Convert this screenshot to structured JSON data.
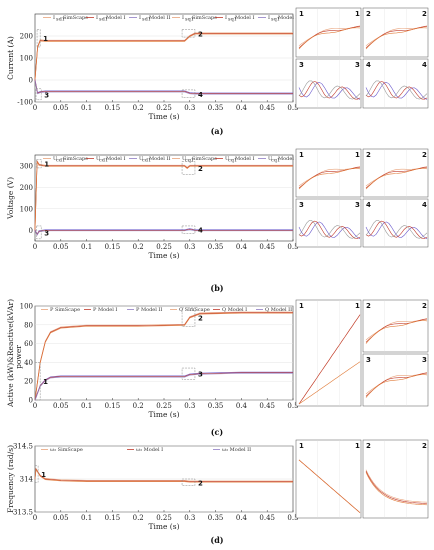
{
  "colors": {
    "simscape": "#e8a27a",
    "model1": "#c0392b",
    "model2": "#8e7cc3",
    "d_series": "#e07b39",
    "q_series": "#6a5acd",
    "grid": "#dddddd",
    "box": "#888888"
  },
  "chart_data": [
    {
      "id": "a",
      "type": "line",
      "panel_label": "(a)",
      "xlabel": "Time (s)",
      "ylabel": "Current (A)",
      "xlim": [
        0,
        0.5
      ],
      "ylim": [
        -100,
        300
      ],
      "xticks": [
        "0",
        "0.05",
        "0.1",
        "0.15",
        "0.2",
        "0.25",
        "0.3",
        "0.35",
        "0.4",
        "0.45",
        "0.5"
      ],
      "yticks": [
        "-100",
        "0",
        "100",
        "200"
      ],
      "legend": [
        "I",
        "SimScape",
        "I",
        "Model I",
        "I",
        "Model II",
        "I",
        "SimScape",
        "I",
        "Model I",
        "I",
        "Model II"
      ],
      "legend_subs": [
        "sd1",
        "",
        "sd1",
        "",
        "sd1",
        "",
        "sq1",
        "",
        "sq1",
        "",
        "sq1",
        ""
      ],
      "series": [
        {
          "group": "d",
          "x": [
            0,
            0.005,
            0.01,
            0.02,
            0.1,
            0.2,
            0.29,
            0.3,
            0.31,
            0.4,
            0.5
          ],
          "y": [
            0,
            150,
            180,
            178,
            178,
            178,
            178,
            200,
            212,
            212,
            212
          ]
        },
        {
          "group": "q",
          "x": [
            0,
            0.005,
            0.01,
            0.02,
            0.1,
            0.2,
            0.29,
            0.3,
            0.31,
            0.4,
            0.5
          ],
          "y": [
            0,
            -60,
            -55,
            -52,
            -52,
            -52,
            -52,
            -60,
            -62,
            -62,
            -62
          ]
        }
      ],
      "zooms": [
        "1",
        "2",
        "3",
        "4"
      ]
    },
    {
      "id": "b",
      "type": "line",
      "panel_label": "(b)",
      "xlabel": "Time (s)",
      "ylabel": "Voltage (V)",
      "xlim": [
        0,
        0.5
      ],
      "ylim": [
        -50,
        350
      ],
      "xticks": [
        "0",
        "0.05",
        "0.1",
        "0.15",
        "0.2",
        "0.25",
        "0.3",
        "0.35",
        "0.4",
        "0.45",
        "0.5"
      ],
      "yticks": [
        "0",
        "100",
        "200",
        "300"
      ],
      "legend": [
        "U",
        "SimScape",
        "U",
        "Model I",
        "U",
        "Model II",
        "U",
        "SimScape",
        "U",
        "Model I",
        "U",
        "Model II"
      ],
      "legend_subs": [
        "cd1",
        "",
        "cd1",
        "",
        "cd1",
        "",
        "cq1",
        "",
        "cq1",
        "",
        "cq1",
        ""
      ],
      "series": [
        {
          "group": "d",
          "x": [
            0,
            0.004,
            0.008,
            0.02,
            0.1,
            0.2,
            0.29,
            0.295,
            0.3,
            0.31,
            0.4,
            0.5
          ],
          "y": [
            0,
            320,
            305,
            300,
            300,
            300,
            300,
            290,
            300,
            300,
            300,
            300
          ]
        },
        {
          "group": "q",
          "x": [
            0,
            0.004,
            0.008,
            0.02,
            0.1,
            0.2,
            0.29,
            0.3,
            0.31,
            0.4,
            0.5
          ],
          "y": [
            0,
            -20,
            -5,
            0,
            0,
            0,
            0,
            5,
            0,
            0,
            0
          ]
        }
      ],
      "zooms": [
        "1",
        "2",
        "3",
        "4"
      ]
    },
    {
      "id": "c",
      "type": "line",
      "panel_label": "(c)",
      "xlabel": "Time (s)",
      "ylabel": "Active (kW)&Reactive(kVAr)",
      "ylabel2": "power",
      "xlim": [
        0,
        0.5
      ],
      "ylim": [
        0,
        100
      ],
      "xticks": [
        "0",
        "0.05",
        "0.1",
        "0.15",
        "0.2",
        "0.25",
        "0.3",
        "0.35",
        "0.4",
        "0.45",
        "0.5"
      ],
      "yticks": [
        "0",
        "20",
        "40",
        "60",
        "80",
        "100"
      ],
      "legend": [
        "P SimScape",
        "P Model I",
        "P Model II",
        "Q SimScape",
        "Q Model I",
        "Q Model II"
      ],
      "series": [
        {
          "group": "d",
          "x": [
            0,
            0.01,
            0.02,
            0.03,
            0.05,
            0.1,
            0.2,
            0.29,
            0.3,
            0.32,
            0.4,
            0.5
          ],
          "y": [
            0,
            40,
            62,
            72,
            77,
            79,
            79,
            80,
            88,
            92,
            93,
            93
          ]
        },
        {
          "group": "q",
          "x": [
            0,
            0.01,
            0.02,
            0.03,
            0.05,
            0.1,
            0.2,
            0.29,
            0.3,
            0.32,
            0.4,
            0.5
          ],
          "y": [
            0,
            15,
            21,
            24,
            25,
            25,
            25,
            25,
            27,
            28,
            29,
            29
          ]
        }
      ],
      "zooms": [
        "1",
        "2",
        "3"
      ]
    },
    {
      "id": "d",
      "type": "line",
      "panel_label": "(d)",
      "xlabel": "Time (s)",
      "ylabel": "Frequency (rad/s)",
      "xlim": [
        0,
        0.5
      ],
      "ylim": [
        313.5,
        314.5
      ],
      "xticks": [
        "0",
        "0.05",
        "0.1",
        "0.15",
        "0.2",
        "0.25",
        "0.3",
        "0.35",
        "0.4",
        "0.45",
        "0.5"
      ],
      "yticks": [
        "313.5",
        "314",
        "314.5"
      ],
      "legend": [
        "ω₂ SimScape",
        "ω₂ Model I",
        "ω₂ Model II"
      ],
      "series": [
        {
          "group": "d",
          "x": [
            0,
            0.002,
            0.01,
            0.02,
            0.05,
            0.1,
            0.2,
            0.29,
            0.3,
            0.31,
            0.4,
            0.5
          ],
          "y": [
            314.0,
            314.15,
            314.05,
            314.0,
            313.98,
            313.97,
            313.97,
            313.97,
            313.96,
            313.96,
            313.96,
            313.96
          ]
        }
      ],
      "zooms": [
        "1",
        "2"
      ]
    }
  ]
}
